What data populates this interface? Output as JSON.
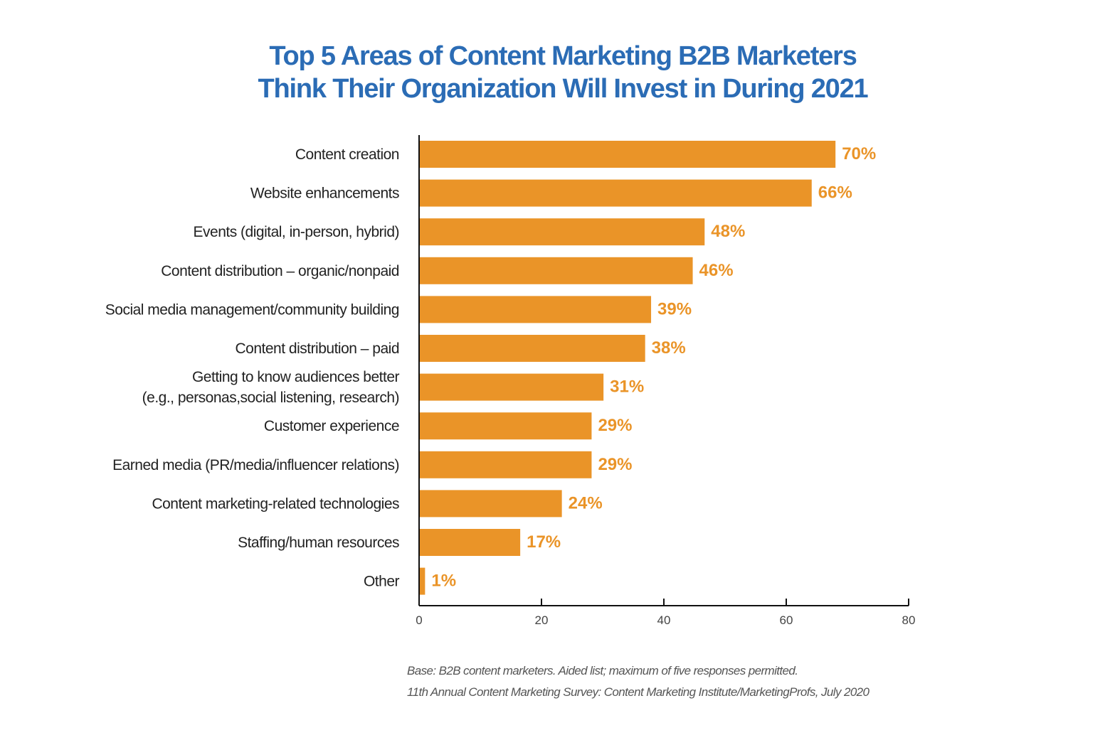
{
  "chart_data": {
    "type": "bar",
    "orientation": "horizontal",
    "title_lines": [
      "Top 5 Areas of Content Marketing B2B Marketers",
      "Think Their Organization Will Invest in During 2021"
    ],
    "categories": [
      [
        "Content creation"
      ],
      [
        "Website enhancements"
      ],
      [
        "Events (digital, in-person, hybrid)"
      ],
      [
        "Content distribution – organic/nonpaid"
      ],
      [
        "Social media management/community building"
      ],
      [
        "Content distribution – paid"
      ],
      [
        "Getting to know audiences better",
        "(e.g., personas,social listening, research)"
      ],
      [
        "Customer experience"
      ],
      [
        "Earned media (PR/media/influencer relations)"
      ],
      [
        "Content marketing-related technologies"
      ],
      [
        "Staffing/human resources"
      ],
      [
        "Other"
      ]
    ],
    "values": [
      70,
      66,
      48,
      46,
      39,
      38,
      31,
      29,
      29,
      24,
      17,
      1
    ],
    "data_labels": [
      "70%",
      "66%",
      "48%",
      "46%",
      "39%",
      "38%",
      "31%",
      "29%",
      "29%",
      "24%",
      "17%",
      "1%"
    ],
    "xlim": [
      0,
      80
    ],
    "xticks": [
      "0",
      "20",
      "40",
      "60",
      "80"
    ],
    "xlabel": "",
    "ylabel": "",
    "grid": false,
    "colors": {
      "bar": "#ea9428",
      "label": "#ea9428",
      "title": "#2b6cb5"
    }
  },
  "footnotes": [
    "Base: B2B content marketers. Aided list; maximum of five responses permitted.",
    "11th Annual Content Marketing Survey: Content Marketing Institute/MarketingProfs, July 2020"
  ]
}
